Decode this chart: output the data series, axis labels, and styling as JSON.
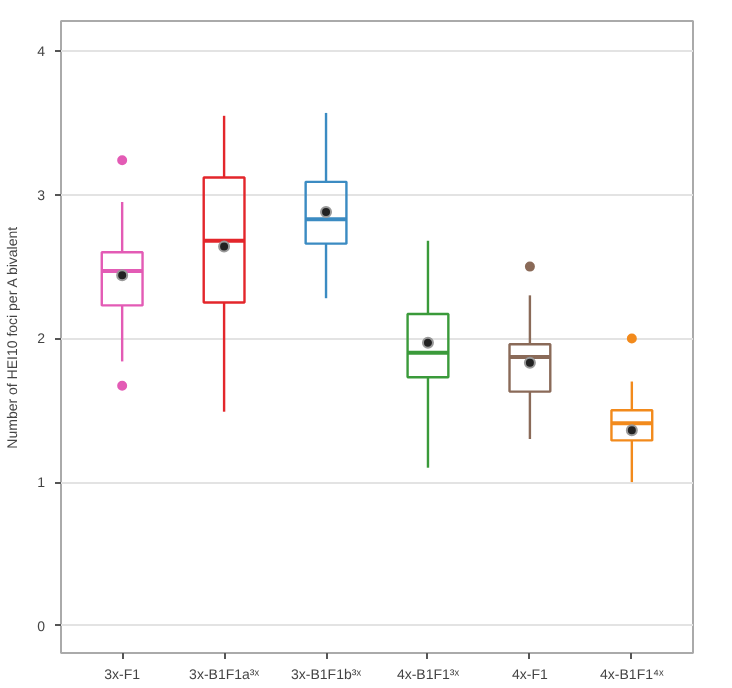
{
  "chart_data": {
    "type": "box",
    "ylabel": "Number of HEI10 foci per A bivalent",
    "categories": [
      "3x-F1",
      "3x-B1F1a³ˣ",
      "3x-B1F1b³ˣ",
      "4x-B1F1³ˣ",
      "4x-F1",
      "4x-B1F1⁴ˣ"
    ],
    "colors": [
      "#e35bb5",
      "#e3262b",
      "#3b8bc2",
      "#3a9a3a",
      "#8a6a58",
      "#f28a1c"
    ],
    "boxes": [
      {
        "low": 1.84,
        "q1": 2.23,
        "median": 2.47,
        "q3": 2.6,
        "high": 2.95,
        "mean": 2.44,
        "outliers": [
          3.24,
          1.67
        ]
      },
      {
        "low": 1.49,
        "q1": 2.25,
        "median": 2.68,
        "q3": 3.12,
        "high": 3.55,
        "mean": 2.64
      },
      {
        "low": 2.28,
        "q1": 2.66,
        "median": 2.83,
        "q3": 3.09,
        "high": 3.57,
        "mean": 2.88
      },
      {
        "low": 1.1,
        "q1": 1.73,
        "median": 1.9,
        "q3": 2.17,
        "high": 2.68,
        "mean": 1.97
      },
      {
        "low": 1.3,
        "q1": 1.63,
        "median": 1.87,
        "q3": 1.96,
        "high": 2.3,
        "mean": 1.83,
        "outliers": [
          2.5
        ]
      },
      {
        "low": 1.0,
        "q1": 1.29,
        "median": 1.41,
        "q3": 1.5,
        "high": 1.7,
        "mean": 1.36,
        "outliers": [
          2.0
        ]
      }
    ],
    "ylim": [
      -0.19,
      4.21
    ],
    "yticks": [
      0,
      1,
      2,
      3,
      4
    ],
    "grid": "y"
  }
}
